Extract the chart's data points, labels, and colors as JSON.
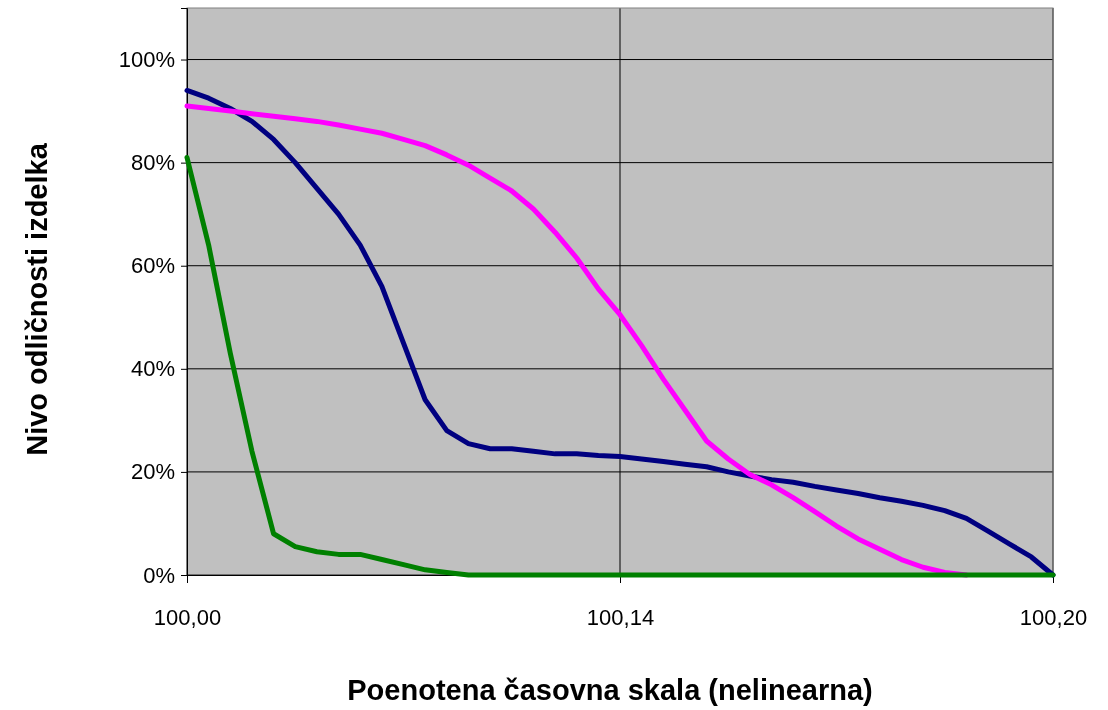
{
  "chart_data": {
    "type": "line",
    "xlabel": "Poenotena časovna skala (nelinearna)",
    "ylabel": "Nivo odličnosti izdelka",
    "categories": [
      "100,00",
      null,
      null,
      null,
      null,
      null,
      null,
      null,
      null,
      null,
      null,
      null,
      null,
      null,
      null,
      null,
      null,
      null,
      null,
      null,
      "100,14",
      null,
      null,
      null,
      null,
      null,
      null,
      null,
      null,
      null,
      null,
      null,
      null,
      null,
      null,
      null,
      null,
      null,
      null,
      null,
      "100,20"
    ],
    "ylim": [
      0,
      110
    ],
    "yticks": [
      {
        "value": 0,
        "label": "0%"
      },
      {
        "value": 20,
        "label": "20%"
      },
      {
        "value": 40,
        "label": "40%"
      },
      {
        "value": 60,
        "label": "60%"
      },
      {
        "value": 80,
        "label": "80%"
      },
      {
        "value": 100,
        "label": "100%"
      }
    ],
    "grid": true,
    "line_style": "solid",
    "marker": "none",
    "series": [
      {
        "color": "#000080",
        "values": [
          94,
          92.5,
          90.5,
          88,
          84.5,
          80,
          75,
          70,
          64,
          56,
          45,
          34,
          28,
          25.5,
          24.5,
          24.5,
          24,
          23.5,
          23.5,
          23.2,
          23,
          22.5,
          22,
          21.5,
          21,
          20,
          19.2,
          18.5,
          18,
          17.2,
          16.5,
          15.8,
          15,
          14.3,
          13.5,
          12.5,
          11,
          8.5,
          6,
          3.5,
          0
        ]
      },
      {
        "color": "#ff00ff",
        "values": [
          91,
          90.5,
          90,
          89.5,
          89,
          88.5,
          88,
          87.3,
          86.5,
          85.7,
          84.5,
          83.3,
          81.5,
          79.5,
          77,
          74.5,
          71,
          66.5,
          61.5,
          55.5,
          50.5,
          44.5,
          38,
          32,
          26,
          22.5,
          19.5,
          17.5,
          15,
          12.3,
          9.5,
          7,
          5,
          3,
          1.5,
          0.5,
          0,
          null,
          null,
          null,
          null
        ]
      },
      {
        "color": "#008000",
        "values": [
          81,
          64,
          43,
          24,
          8,
          5.5,
          4.5,
          4,
          4,
          3,
          2,
          1,
          0.5,
          0,
          0,
          0,
          0,
          0,
          0,
          0,
          0,
          0,
          0,
          0,
          0,
          0,
          0,
          0,
          0,
          0,
          0,
          0,
          0,
          0,
          0,
          0,
          0,
          0,
          0,
          0,
          0
        ]
      }
    ]
  }
}
